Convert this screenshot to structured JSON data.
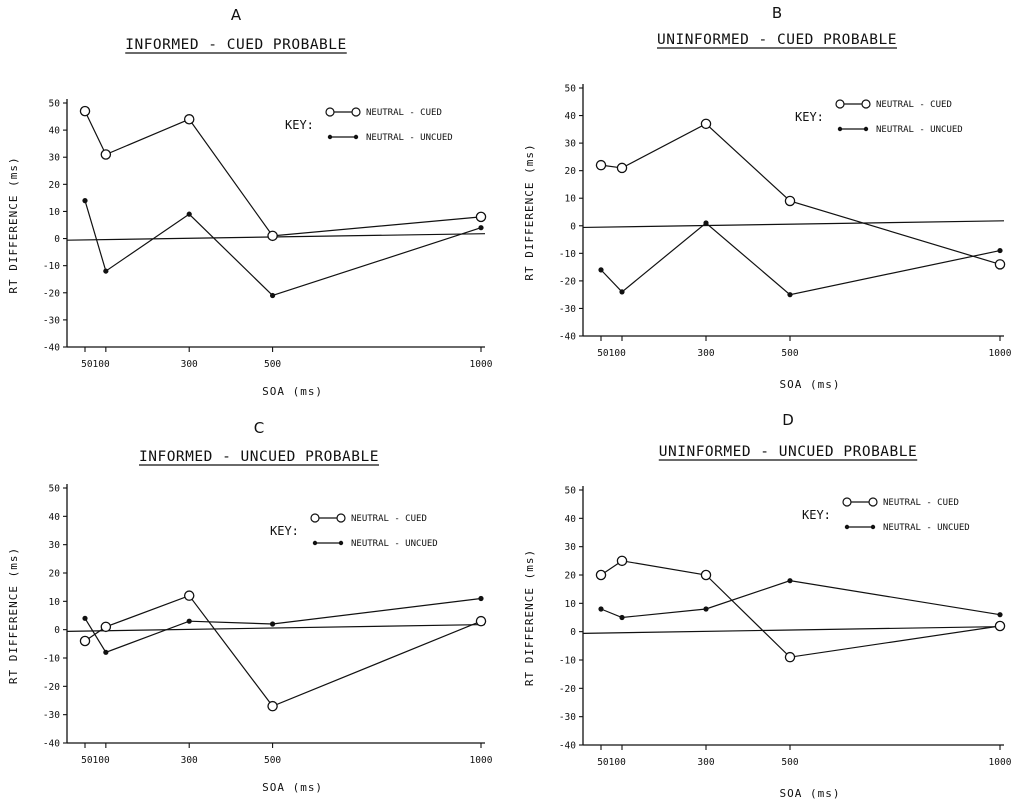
{
  "chart_data": [
    {
      "type": "line",
      "panel_letter": "A",
      "title": "INFORMED - CUED PROBABLE",
      "xlabel": "SOA (ms)",
      "ylabel": "RT DIFFERENCE (ms)",
      "ylim": [
        -40,
        50
      ],
      "yticks": [
        "50",
        "40",
        "30",
        "20",
        "10",
        "0",
        "-10",
        "-20",
        "-30",
        "-40"
      ],
      "xticks": [
        "50100",
        "300",
        "500",
        "1000"
      ],
      "x": [
        50,
        100,
        300,
        500,
        1000
      ],
      "legend_key": "KEY:",
      "series": [
        {
          "name": "NEUTRAL - CUED",
          "marker": "open-circle",
          "values": [
            47,
            31,
            44,
            1,
            8
          ]
        },
        {
          "name": "NEUTRAL - UNCUED",
          "marker": "filled-dot",
          "values": [
            14,
            -12,
            9,
            -21,
            4
          ]
        }
      ]
    },
    {
      "type": "line",
      "panel_letter": "B",
      "title": "UNINFORMED - CUED PROBABLE",
      "xlabel": "SOA (ms)",
      "ylabel": "RT DIFFERENCE (ms)",
      "ylim": [
        -40,
        50
      ],
      "yticks": [
        "50",
        "40",
        "30",
        "20",
        "10",
        "0",
        "-10",
        "-20",
        "-30",
        "-40"
      ],
      "xticks": [
        "50100",
        "300",
        "500",
        "1000"
      ],
      "x": [
        50,
        100,
        300,
        500,
        1000
      ],
      "legend_key": "KEY:",
      "series": [
        {
          "name": "NEUTRAL - CUED",
          "marker": "open-circle",
          "values": [
            22,
            21,
            37,
            9,
            -14
          ]
        },
        {
          "name": "NEUTRAL - UNCUED",
          "marker": "filled-dot",
          "values": [
            -16,
            -24,
            1,
            -25,
            -9
          ]
        }
      ]
    },
    {
      "type": "line",
      "panel_letter": "C",
      "title": "INFORMED - UNCUED PROBABLE",
      "xlabel": "SOA (ms)",
      "ylabel": "RT DIFFERENCE (ms)",
      "ylim": [
        -40,
        50
      ],
      "yticks": [
        "50",
        "40",
        "30",
        "20",
        "10",
        "0",
        "-10",
        "-20",
        "-30",
        "-40"
      ],
      "xticks": [
        "50100",
        "300",
        "500",
        "1000"
      ],
      "x": [
        50,
        100,
        300,
        500,
        1000
      ],
      "legend_key": "KEY:",
      "series": [
        {
          "name": "NEUTRAL - CUED",
          "marker": "open-circle",
          "values": [
            -4,
            1,
            12,
            -27,
            3
          ]
        },
        {
          "name": "NEUTRAL - UNCUED",
          "marker": "filled-dot",
          "values": [
            4,
            -8,
            3,
            2,
            11
          ]
        }
      ]
    },
    {
      "type": "line",
      "panel_letter": "D",
      "title": "UNINFORMED - UNCUED PROBABLE",
      "xlabel": "SOA (ms)",
      "ylabel": "RT DIFFERENCE (ms)",
      "ylim": [
        -40,
        50
      ],
      "yticks": [
        "50",
        "40",
        "30",
        "20",
        "10",
        "0",
        "-10",
        "-20",
        "-30",
        "-40"
      ],
      "xticks": [
        "50100",
        "300",
        "500",
        "1000"
      ],
      "x": [
        50,
        100,
        300,
        500,
        1000
      ],
      "legend_key": "KEY:",
      "series": [
        {
          "name": "NEUTRAL - CUED",
          "marker": "open-circle",
          "values": [
            20,
            25,
            20,
            -9,
            2
          ]
        },
        {
          "name": "NEUTRAL - UNCUED",
          "marker": "filled-dot",
          "values": [
            8,
            5,
            8,
            18,
            6
          ]
        }
      ]
    }
  ]
}
